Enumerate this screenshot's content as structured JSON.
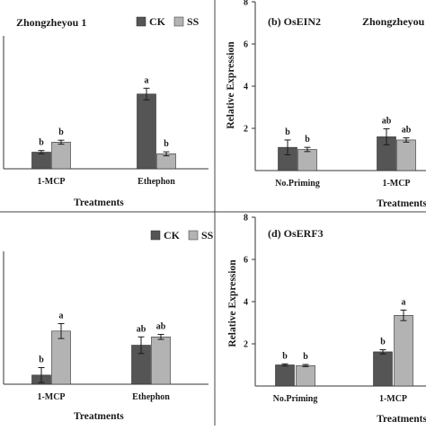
{
  "chart_data": [
    {
      "id": "panel-a",
      "type": "bar",
      "title": "Zhongzheyou 1",
      "xlabel": "Treatments",
      "ylabel": "",
      "ylim": [
        0,
        8
      ],
      "yticks": [],
      "grid": false,
      "legend": "top-right",
      "categories": [
        "1-MCP",
        "Ethephon"
      ],
      "series": [
        {
          "name": "CK",
          "color": "#555555",
          "values": [
            1.0,
            4.5
          ],
          "errors": [
            0.1,
            0.35
          ],
          "labels": [
            "b",
            "a"
          ]
        },
        {
          "name": "SS",
          "color": "#b3b3b3",
          "values": [
            1.6,
            0.9
          ],
          "errors": [
            0.12,
            0.12
          ],
          "labels": [
            "b",
            "b"
          ]
        }
      ]
    },
    {
      "id": "panel-b",
      "type": "bar",
      "title": "(b) OsEIN2",
      "subtitle": "Zhongzheyou",
      "xlabel": "Treatments",
      "ylabel": "Relative Expression",
      "ylim": [
        0,
        8
      ],
      "yticks": [
        2,
        4,
        6,
        8
      ],
      "grid": false,
      "legend": "none",
      "categories": [
        "No.Priming",
        "1-MCP"
      ],
      "series": [
        {
          "name": "CK",
          "color": "#555555",
          "values": [
            1.1,
            1.6
          ],
          "errors": [
            0.35,
            0.38
          ],
          "labels": [
            "b",
            "ab"
          ]
        },
        {
          "name": "SS",
          "color": "#b3b3b3",
          "values": [
            1.0,
            1.45
          ],
          "errors": [
            0.1,
            0.1
          ],
          "labels": [
            "b",
            "ab"
          ]
        }
      ]
    },
    {
      "id": "panel-c",
      "type": "bar",
      "title": "",
      "xlabel": "Treatments",
      "ylabel": "",
      "ylim": [
        0,
        8
      ],
      "yticks": [],
      "grid": false,
      "legend": "top-right",
      "categories": [
        "1-MCP",
        "Ethephon"
      ],
      "series": [
        {
          "name": "CK",
          "color": "#555555",
          "values": [
            0.55,
            2.35
          ],
          "errors": [
            0.45,
            0.5
          ],
          "labels": [
            "b",
            "ab"
          ]
        },
        {
          "name": "SS",
          "color": "#b3b3b3",
          "values": [
            3.2,
            2.85
          ],
          "errors": [
            0.45,
            0.15
          ],
          "labels": [
            "a",
            "ab"
          ]
        }
      ]
    },
    {
      "id": "panel-d",
      "type": "bar",
      "title": "(d) OsERF3",
      "xlabel": "Treatments",
      "ylabel": "Relative Expression",
      "ylim": [
        0,
        8
      ],
      "yticks": [
        2,
        4,
        6,
        8
      ],
      "grid": false,
      "legend": "none",
      "categories": [
        "No.Priming",
        "1-MCP"
      ],
      "series": [
        {
          "name": "CK",
          "color": "#555555",
          "values": [
            1.0,
            1.62
          ],
          "errors": [
            0.05,
            0.1
          ],
          "labels": [
            "b",
            "b"
          ]
        },
        {
          "name": "SS",
          "color": "#b3b3b3",
          "values": [
            0.97,
            3.35
          ],
          "errors": [
            0.05,
            0.25
          ],
          "labels": [
            "b",
            "a"
          ]
        }
      ]
    }
  ]
}
